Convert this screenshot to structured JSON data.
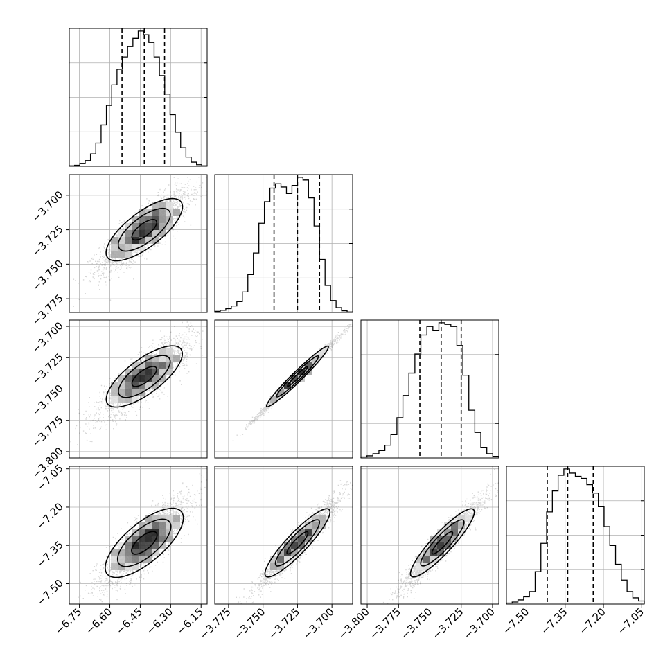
{
  "chart_data": {
    "type": "corner",
    "parameters": [
      {
        "range": [
          -6.8,
          -6.12
        ],
        "ticks": [
          "-6.75",
          "-6.60",
          "-6.45",
          "-6.30",
          "-6.15"
        ],
        "tick_values": [
          -6.75,
          -6.6,
          -6.45,
          -6.3,
          -6.15
        ],
        "quantiles": [
          -6.54,
          -6.43,
          -6.33
        ],
        "mean": -6.43,
        "sd": 0.095
      },
      {
        "range": [
          -3.785,
          -3.685
        ],
        "ticks": [
          "-3.775",
          "-3.750",
          "-3.725",
          "-3.700"
        ],
        "tick_values": [
          -3.775,
          -3.75,
          -3.725,
          -3.7
        ],
        "quantiles": [
          -3.742,
          -3.725,
          -3.709
        ],
        "mean": -3.725,
        "sd": 0.0125
      },
      {
        "range": [
          -3.805,
          -3.695
        ],
        "ticks": [
          "-3.800",
          "-3.775",
          "-3.750",
          "-3.725",
          "-3.700"
        ],
        "tick_values": [
          -3.8,
          -3.775,
          -3.75,
          -3.725,
          -3.7
        ],
        "quantiles": [
          -3.758,
          -3.741,
          -3.725
        ],
        "mean": -3.74,
        "sd": 0.0135
      },
      {
        "range": [
          -7.58,
          -7.04
        ],
        "ticks": [
          "-7.05",
          "-7.20",
          "-7.35",
          "-7.50"
        ],
        "tick_values": [
          -7.05,
          -7.2,
          -7.35,
          -7.5
        ],
        "xticks": [
          "-7.50",
          "-7.35",
          "-7.20",
          "-7.05"
        ],
        "xtick_values": [
          -7.5,
          -7.35,
          -7.2,
          -7.05
        ],
        "quantiles": [
          -7.42,
          -7.34,
          -7.24
        ],
        "mean": -7.34,
        "sd": 0.075
      }
    ],
    "histograms": [
      [
        1,
        2,
        5,
        11,
        24,
        45,
        80,
        118,
        158,
        188,
        212,
        232,
        248,
        262,
        255,
        240,
        212,
        176,
        140,
        100,
        66,
        36,
        18,
        8,
        3,
        1
      ],
      [
        2,
        4,
        7,
        12,
        20,
        38,
        70,
        110,
        165,
        205,
        230,
        238,
        232,
        220,
        235,
        250,
        245,
        212,
        160,
        98,
        50,
        22,
        9,
        3,
        1
      ],
      [
        2,
        4,
        8,
        14,
        24,
        44,
        76,
        118,
        160,
        196,
        232,
        248,
        240,
        255,
        252,
        248,
        212,
        156,
        90,
        48,
        20,
        8,
        3
      ],
      [
        2,
        4,
        8,
        14,
        24,
        62,
        116,
        176,
        216,
        246,
        258,
        250,
        244,
        240,
        228,
        212,
        186,
        148,
        112,
        76,
        46,
        24,
        12,
        6
      ]
    ],
    "correlations": {
      "1-0": 0.85,
      "2-0": 0.85,
      "2-1": 0.995,
      "3-0": 0.85,
      "3-1": 0.95,
      "3-2": 0.95
    },
    "grid": true,
    "quantile_style": "dashed"
  }
}
